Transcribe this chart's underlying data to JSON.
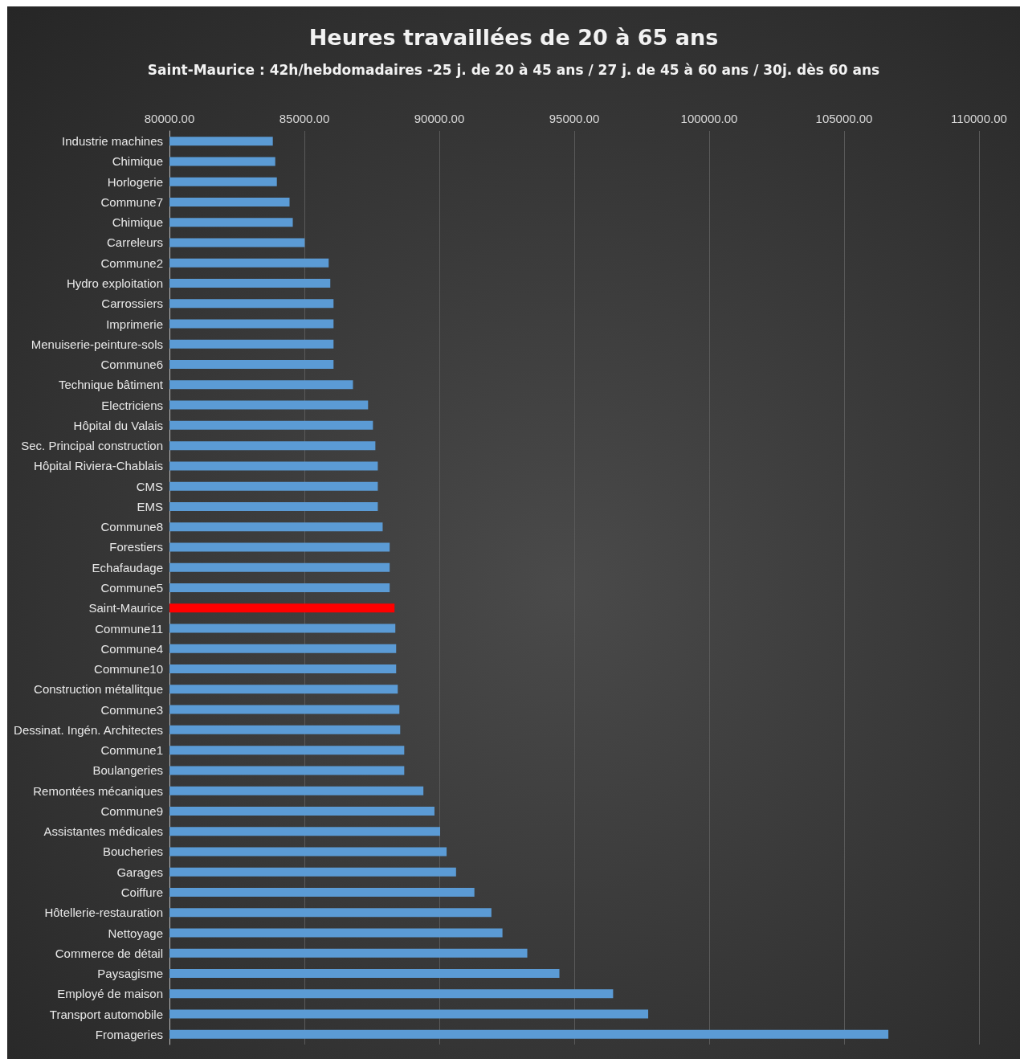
{
  "chart_data": {
    "type": "bar",
    "orientation": "horizontal",
    "title": "Heures travaillées de 20 à 65 ans",
    "subtitle": "Saint-Maurice : 42h/hebdomadaires -25 j. de 20 à 45 ans / 27 j. de 45 à 60 ans / 30j. dès 60 ans",
    "categories": [
      "Industrie machines",
      "Chimique",
      "Horlogerie",
      "Commune7",
      "Chimique",
      "Carreleurs",
      "Commune2",
      "Hydro exploitation",
      "Carrossiers",
      "Imprimerie",
      "Menuiserie-peinture-sols",
      "Commune6",
      "Technique bâtiment",
      "Electriciens",
      "Hôpital du Valais",
      "Sec. Principal construction",
      "Hôpital Riviera-Chablais",
      "CMS",
      "EMS",
      "Commune8",
      "Forestiers",
      "Echafaudage",
      "Commune5",
      "Saint-Maurice",
      "Commune11",
      "Commune4",
      "Commune10",
      "Construction métallitque",
      "Commune3",
      "Dessinat. Ingén. Architectes",
      "Commune1",
      "Boulangeries",
      "Remontées mécaniques",
      "Commune9",
      "Assistantes médicales",
      "Boucheries",
      "Garages",
      "Coiffure",
      "Hôtellerie-restauration",
      "Nettoyage",
      "Commerce de détail",
      "Paysagisme",
      "Employé de maison",
      "Transport automobile",
      "Fromageries"
    ],
    "values": [
      83830,
      83920,
      83980,
      84450,
      84570,
      85010,
      85900,
      85960,
      86080,
      86080,
      86080,
      86080,
      86800,
      87360,
      87540,
      87630,
      87720,
      87720,
      87720,
      87900,
      88160,
      88160,
      88160,
      88340,
      88370,
      88400,
      88400,
      88460,
      88520,
      88550,
      88700,
      88700,
      89410,
      89820,
      90030,
      90270,
      90620,
      91300,
      91930,
      92340,
      93260,
      94450,
      96440,
      97740,
      106640
    ],
    "colors": [
      "#5b9bd5",
      "#5b9bd5",
      "#5b9bd5",
      "#5b9bd5",
      "#5b9bd5",
      "#5b9bd5",
      "#5b9bd5",
      "#5b9bd5",
      "#5b9bd5",
      "#5b9bd5",
      "#5b9bd5",
      "#5b9bd5",
      "#5b9bd5",
      "#5b9bd5",
      "#5b9bd5",
      "#5b9bd5",
      "#5b9bd5",
      "#5b9bd5",
      "#5b9bd5",
      "#5b9bd5",
      "#5b9bd5",
      "#5b9bd5",
      "#5b9bd5",
      "#ff0000",
      "#5b9bd5",
      "#5b9bd5",
      "#5b9bd5",
      "#5b9bd5",
      "#5b9bd5",
      "#5b9bd5",
      "#5b9bd5",
      "#5b9bd5",
      "#5b9bd5",
      "#5b9bd5",
      "#5b9bd5",
      "#5b9bd5",
      "#5b9bd5",
      "#5b9bd5",
      "#5b9bd5",
      "#5b9bd5",
      "#5b9bd5",
      "#5b9bd5",
      "#5b9bd5",
      "#5b9bd5",
      "#5b9bd5"
    ],
    "xlim": [
      80000,
      110000
    ],
    "xticks": [
      {
        "value": 80000,
        "label": "80000.00"
      },
      {
        "value": 85000,
        "label": "85000.00"
      },
      {
        "value": 90000,
        "label": "90000.00"
      },
      {
        "value": 95000,
        "label": "95000.00"
      },
      {
        "value": 100000,
        "label": "100000.00"
      },
      {
        "value": 105000,
        "label": "105000.00"
      },
      {
        "value": 110000,
        "label": "110000.00"
      }
    ],
    "grid": "x"
  }
}
